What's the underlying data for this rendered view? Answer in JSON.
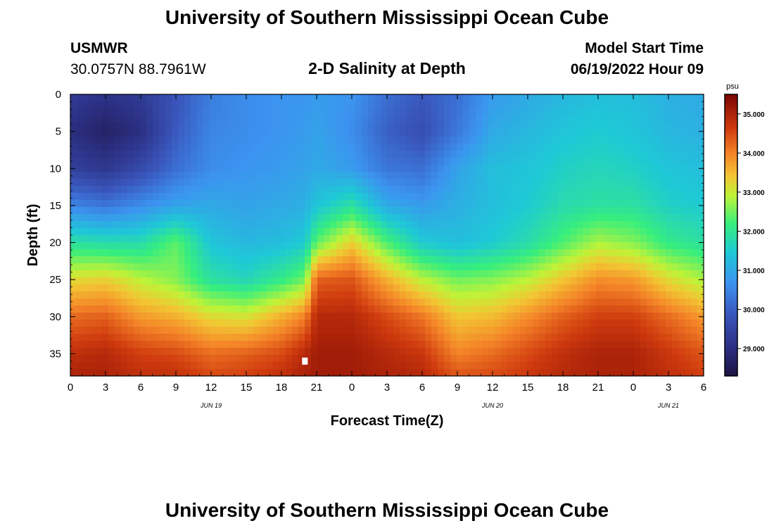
{
  "page": {
    "title_top": "University of Southern Mississippi Ocean Cube",
    "title_bottom": "University of Southern Mississippi Ocean Cube",
    "station": "USMWR",
    "coords": "30.0757N  88.7961W",
    "subtitle": "2-D Salinity at Depth",
    "model_label": "Model Start Time",
    "model_time": "06/19/2022 Hour 09"
  },
  "chart_data": {
    "type": "heatmap",
    "title": "2-D Salinity at Depth",
    "xlabel": "Forecast Time(Z)",
    "ylabel": "Depth (ft)",
    "x_range_hours": [
      0,
      54
    ],
    "x_tick_labels": [
      "0",
      "3",
      "6",
      "9",
      "12",
      "15",
      "18",
      "21",
      "0",
      "3",
      "6",
      "9",
      "12",
      "15",
      "18",
      "21",
      "0",
      "3",
      "6"
    ],
    "date_labels": [
      {
        "label": "JUN 19",
        "hour": 12
      },
      {
        "label": "JUN 20",
        "hour": 36
      },
      {
        "label": "JUN 21",
        "hour": 51
      }
    ],
    "y_range_ft": [
      0,
      38
    ],
    "y_ticks": [
      0,
      5,
      10,
      15,
      20,
      25,
      30,
      35
    ],
    "colorbar": {
      "unit": "psu",
      "range": [
        28.3,
        35.5
      ],
      "ticks": [
        "29.000",
        "30.000",
        "31.000",
        "32.000",
        "33.000",
        "34.000",
        "35.000"
      ],
      "tick_values": [
        29,
        30,
        31,
        32,
        33,
        34,
        35
      ]
    },
    "profile_hours": [
      0,
      3,
      6,
      9,
      12,
      15,
      18,
      20,
      21,
      24,
      27,
      30,
      33,
      36,
      39,
      42,
      45,
      48,
      51,
      54
    ],
    "profile_depths_ft": [
      0,
      5,
      10,
      15,
      20,
      25,
      30,
      35,
      38
    ],
    "salinity_psu": [
      [
        29.3,
        29.0,
        29.4,
        30.5,
        31.9,
        33.2,
        34.2,
        34.8,
        35.0
      ],
      [
        29.1,
        28.7,
        29.2,
        30.3,
        31.8,
        33.3,
        34.3,
        34.9,
        35.0
      ],
      [
        29.3,
        29.0,
        29.6,
        30.6,
        31.8,
        32.9,
        33.8,
        34.6,
        34.8
      ],
      [
        29.8,
        29.9,
        30.2,
        30.9,
        32.4,
        32.6,
        33.6,
        34.5,
        34.8
      ],
      [
        30.4,
        30.5,
        30.6,
        31.0,
        31.4,
        31.9,
        33.2,
        34.2,
        34.5
      ],
      [
        30.6,
        30.6,
        30.7,
        30.9,
        31.2,
        31.7,
        33.1,
        34.3,
        34.6
      ],
      [
        30.7,
        30.7,
        30.8,
        31.0,
        31.3,
        32.1,
        33.6,
        34.5,
        34.8
      ],
      [
        30.7,
        30.8,
        30.9,
        31.1,
        31.5,
        32.5,
        34.0,
        34.9,
        35.0
      ],
      [
        30.8,
        30.9,
        31.0,
        31.4,
        32.4,
        34.3,
        34.9,
        35.1,
        35.1
      ],
      [
        30.7,
        30.6,
        30.8,
        31.9,
        33.3,
        34.4,
        34.9,
        35.1,
        35.1
      ],
      [
        30.2,
        30.0,
        30.3,
        31.0,
        32.3,
        33.6,
        34.5,
        34.9,
        35.0
      ],
      [
        29.9,
        29.7,
        30.2,
        30.8,
        31.5,
        32.9,
        34.1,
        34.7,
        34.9
      ],
      [
        30.2,
        30.3,
        30.9,
        31.1,
        31.3,
        32.5,
        33.4,
        34.0,
        34.4
      ],
      [
        30.8,
        31.0,
        31.3,
        31.3,
        31.5,
        32.6,
        33.5,
        34.2,
        34.5
      ],
      [
        31.0,
        31.2,
        31.4,
        31.5,
        31.8,
        32.9,
        33.9,
        34.5,
        34.7
      ],
      [
        31.2,
        31.4,
        31.6,
        31.8,
        32.3,
        33.4,
        34.3,
        34.8,
        34.9
      ],
      [
        31.3,
        31.5,
        31.7,
        31.9,
        32.8,
        33.9,
        34.6,
        35.0,
        35.0
      ],
      [
        31.3,
        31.4,
        31.6,
        31.9,
        32.6,
        33.8,
        34.6,
        35.0,
        35.0
      ],
      [
        31.1,
        31.2,
        31.4,
        31.6,
        32.1,
        33.2,
        34.2,
        34.7,
        34.8
      ],
      [
        31.0,
        31.1,
        31.3,
        31.5,
        31.9,
        32.8,
        33.8,
        34.4,
        34.6
      ]
    ],
    "marker": {
      "hour": 20,
      "depth_ft": 36
    }
  }
}
